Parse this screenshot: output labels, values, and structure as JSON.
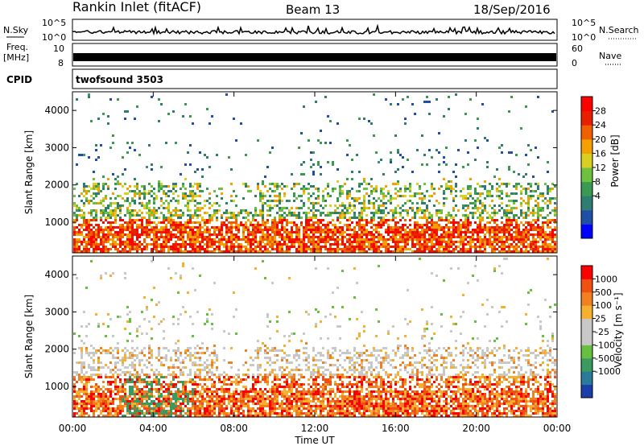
{
  "header": {
    "station": "Rankin Inlet (fitACF)",
    "beam": "Beam 13",
    "date": "18/Sep/2016"
  },
  "strips": {
    "nsky_label": "N.Sky",
    "nsky_ticks": [
      "10^5",
      "10^0"
    ],
    "nsearch_label": "N.Search",
    "freq_label_line1": "Freq.",
    "freq_label_line2": "[MHz]",
    "freq_ticks": [
      "10",
      "8"
    ],
    "nave_label": "Nave",
    "nave_ticks": [
      "60",
      "0"
    ],
    "cpid_label": "CPID",
    "cpid_value": "twofsound 3503"
  },
  "chart_data": [
    {
      "type": "heatmap",
      "name": "power",
      "ylabel": "Slant Range [km]",
      "yticks": [
        1000,
        2000,
        3000,
        4000
      ],
      "ylim": [
        180,
        4500
      ],
      "colorbar_label": "Power [dB]",
      "colorbar_ticks": [
        28,
        24,
        20,
        16,
        12,
        8,
        4
      ],
      "colorbar_colors": [
        "#0000ff",
        "#1f4fa6",
        "#2e7d70",
        "#3a9a52",
        "#6ec040",
        "#d8d020",
        "#f5a000",
        "#f06000",
        "#e82000",
        "#ff0000"
      ]
    },
    {
      "type": "heatmap",
      "name": "velocity",
      "ylabel": "Slant Range [km]",
      "yticks": [
        1000,
        2000,
        3000,
        4000
      ],
      "ylim": [
        180,
        4500
      ],
      "colorbar_label": "Velocity [m s⁻¹]",
      "colorbar_ticks": [
        1000,
        500,
        100,
        25,
        -25,
        -100,
        -500,
        -1000
      ],
      "colorbar_colors": [
        "#1b3faa",
        "#2a7a9a",
        "#3a9a60",
        "#66c040",
        "#c8c8c8",
        "#c8c8c8",
        "#f5b030",
        "#f08020",
        "#f05010",
        "#ff0000"
      ]
    }
  ],
  "xaxis": {
    "xlabel": "Time UT",
    "ticks": [
      "00:00",
      "04:00",
      "08:00",
      "12:00",
      "16:00",
      "20:00",
      "00:00"
    ]
  }
}
